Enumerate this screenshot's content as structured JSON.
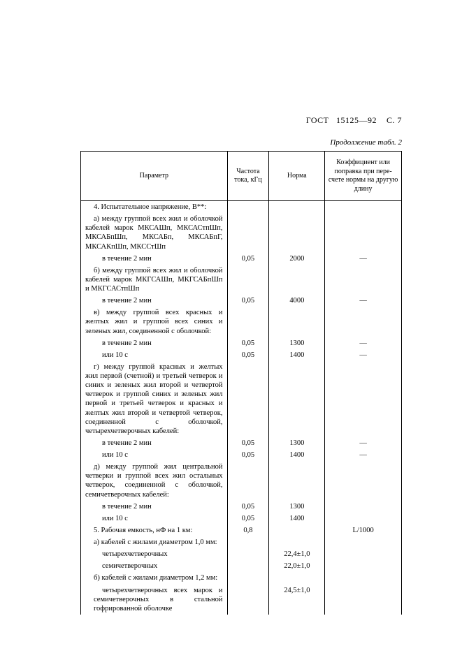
{
  "header": {
    "gost": "ГОСТ",
    "number": "15125—92",
    "page": "С. 7"
  },
  "caption": "Продолжение табл. 2",
  "columns": {
    "param": "Параметр",
    "freq": "Частота тока, кГц",
    "norm": "Норма",
    "coef": "Коэффициент или поправка при пере-счете нормы на другую длину"
  },
  "rows": [
    {
      "param": "4. Испытательное напряжение, В**:",
      "freq": "",
      "norm": "",
      "coef": ""
    },
    {
      "param": "а) между группой всех жил и оболочкой кабелей марок МКСАШп, МКСАСтпШп, МКСАБпШп, МКСАБп, МКСАБпГ, МКСАКпШп, МКССтШп",
      "freq": "",
      "norm": "",
      "coef": ""
    },
    {
      "param": "в течение 2 мин",
      "freq": "0,05",
      "norm": "2000",
      "coef": "—",
      "sub": true
    },
    {
      "param": "б) между группой всех жил и оболочкой кабелей марок МКГСАШп, МКГСАБпШп и МКГСАСтпШп",
      "freq": "",
      "norm": "",
      "coef": ""
    },
    {
      "param": "в течение 2 мин",
      "freq": "0,05",
      "norm": "4000",
      "coef": "—",
      "sub": true
    },
    {
      "param": "в) между группой всех красных и желтых жил и группой всех синих и зеленых жил, соединенной с оболочкой:",
      "freq": "",
      "norm": "",
      "coef": ""
    },
    {
      "param": "в течение 2 мин",
      "freq": "0,05",
      "norm": "1300",
      "coef": "—",
      "sub": true
    },
    {
      "param": "или 10 с",
      "freq": "0,05",
      "norm": "1400",
      "coef": "—",
      "sub": true
    },
    {
      "param": "г) между группой красных и желтых жил первой (счетной) и третьей четверок и синих и зеленых жил второй и четвертой четверок и группой синих и зеленых жил первой и третьей четверок и красных и желтых жил второй и четвертой четверок, соединенной с оболочкой, четырехчетверочных кабелей:",
      "freq": "",
      "norm": "",
      "coef": ""
    },
    {
      "param": "в течение 2 мин",
      "freq": "0,05",
      "norm": "1300",
      "coef": "—",
      "sub": true
    },
    {
      "param": "или 10 с",
      "freq": "0,05",
      "norm": "1400",
      "coef": "—",
      "sub": true
    },
    {
      "param": "д) между группой жил центральной четверки и группой всех жил остальных четверок, соединенной с оболочкой, семичетверочных кабелей:",
      "freq": "",
      "norm": "",
      "coef": ""
    },
    {
      "param": "в течение 2 мин",
      "freq": "0,05",
      "norm": "1300",
      "coef": "",
      "sub": true
    },
    {
      "param": "или 10 с",
      "freq": "0,05",
      "norm": "1400",
      "coef": "",
      "sub": true
    },
    {
      "param": "5. Рабочая емкость, нФ на 1 км:",
      "freq": "0,8",
      "norm": "",
      "coef": "L/1000"
    },
    {
      "param": "а) кабелей с жилами диаметром 1,0 мм:",
      "freq": "",
      "norm": "",
      "coef": ""
    },
    {
      "param": "четырехчетверочных",
      "freq": "",
      "norm": "22,4±1,0",
      "coef": "",
      "sub": true
    },
    {
      "param": "семичетверочных",
      "freq": "",
      "norm": "22,0±1,0",
      "coef": "",
      "sub": true
    },
    {
      "param": "б) кабелей с жилами диаметром 1,2 мм:",
      "freq": "",
      "norm": "",
      "coef": ""
    },
    {
      "param": "четырехчетверочных всех марок и семичетверочных в стальной гофрированной оболочке",
      "freq": "",
      "norm": "24,5±1,0",
      "coef": "",
      "sub": true
    }
  ]
}
